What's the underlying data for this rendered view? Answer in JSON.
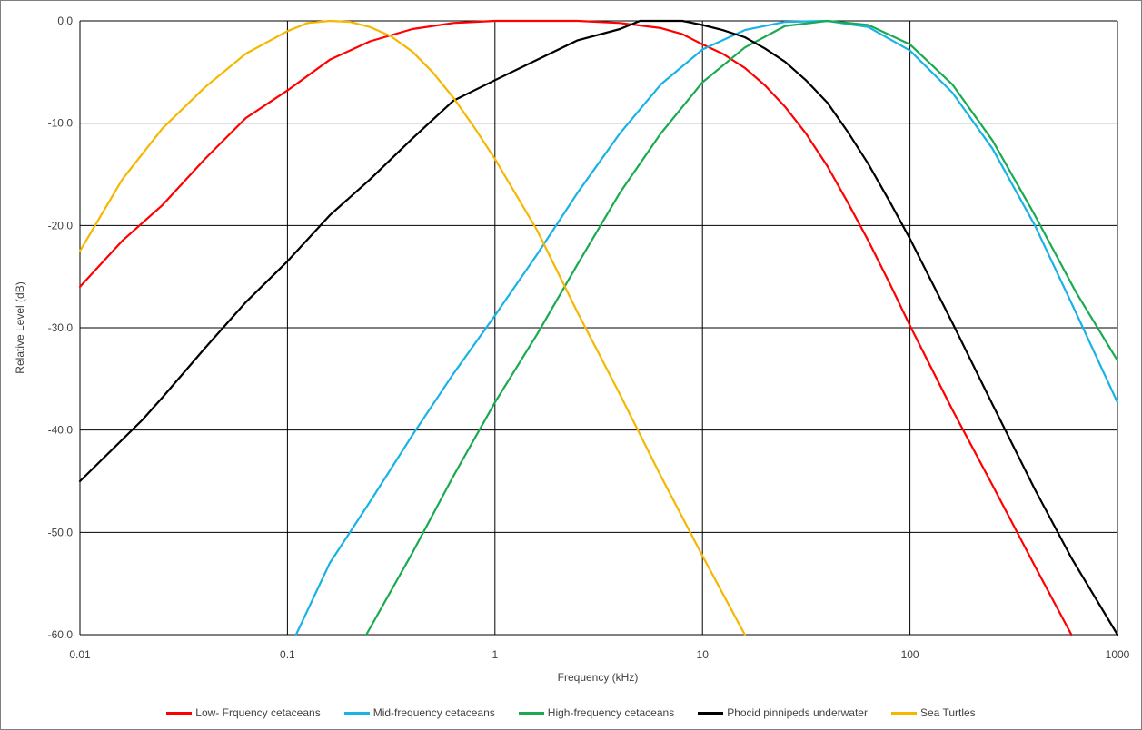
{
  "chart_data": {
    "type": "line",
    "title": "",
    "xlabel": "Frequency (kHz)",
    "ylabel": "Relative Level (dB)",
    "x_scale": "log",
    "xlim": [
      0.01,
      1000
    ],
    "ylim": [
      -60,
      0
    ],
    "x_ticks": [
      0.01,
      0.1,
      1,
      10,
      100,
      1000
    ],
    "x_tick_labels": [
      "0.01",
      "0.1",
      "1",
      "10",
      "100",
      "1000"
    ],
    "y_ticks": [
      0,
      -10,
      -20,
      -30,
      -40,
      -50,
      -60
    ],
    "y_tick_labels": [
      "0.0",
      "-10.0",
      "-20.0",
      "-30.0",
      "-40.0",
      "-50.0",
      "-60.0"
    ],
    "grid": true,
    "legend_position": "bottom",
    "series": [
      {
        "name": "Low- Frquency cetaceans",
        "color": "#ff0000",
        "x": [
          0.01,
          0.016,
          0.025,
          0.04,
          0.063,
          0.1,
          0.16,
          0.25,
          0.4,
          0.63,
          1,
          1.6,
          2.5,
          4,
          6.3,
          8,
          10,
          12.5,
          16,
          20,
          25,
          31.5,
          40,
          50,
          63,
          80,
          100,
          160,
          250,
          400,
          600
        ],
        "y": [
          -26,
          -21.5,
          -18,
          -13.5,
          -9.5,
          -6.8,
          -3.8,
          -2.0,
          -0.8,
          -0.2,
          0,
          0,
          0,
          -0.2,
          -0.7,
          -1.3,
          -2.3,
          -3.2,
          -4.6,
          -6.3,
          -8.4,
          -11.0,
          -14.2,
          -17.7,
          -21.5,
          -25.7,
          -29.8,
          -38,
          -45.4,
          -53.3,
          -60
        ]
      },
      {
        "name": "Mid-frequency cetaceans",
        "color": "#19b2e6",
        "x": [
          0.11,
          0.16,
          0.25,
          0.4,
          0.63,
          1,
          1.6,
          2.5,
          4,
          6.3,
          10,
          16,
          25,
          40,
          63,
          100,
          160,
          250,
          400,
          630,
          1000
        ],
        "y": [
          -60,
          -53,
          -47,
          -40.5,
          -34.5,
          -28.8,
          -22.8,
          -16.8,
          -11.0,
          -6.2,
          -2.8,
          -0.9,
          -0.1,
          0,
          -0.6,
          -2.9,
          -7.0,
          -12.5,
          -20.0,
          -28.5,
          -37.3
        ]
      },
      {
        "name": "High-frequency cetaceans",
        "color": "#1aaa50",
        "x": [
          0.24,
          0.4,
          0.63,
          1,
          1.6,
          2.5,
          4,
          6.3,
          10,
          16,
          25,
          40,
          63,
          100,
          160,
          250,
          400,
          630,
          1000
        ],
        "y": [
          -60,
          -52,
          -44.5,
          -37.3,
          -30.6,
          -23.8,
          -16.8,
          -11.0,
          -6.0,
          -2.6,
          -0.5,
          0,
          -0.4,
          -2.3,
          -6.2,
          -11.7,
          -19.0,
          -26.5,
          -33.2
        ]
      },
      {
        "name": "Phocid pinnipeds underwater",
        "color": "#000000",
        "x": [
          0.01,
          0.02,
          0.025,
          0.04,
          0.063,
          0.1,
          0.16,
          0.25,
          0.4,
          0.63,
          1,
          1.6,
          2.5,
          4,
          5,
          8,
          10,
          12.5,
          16,
          20,
          25,
          31.5,
          40,
          50,
          63,
          80,
          100,
          160,
          250,
          400,
          600,
          1000
        ],
        "y": [
          -45,
          -39,
          -36.8,
          -32,
          -27.5,
          -23.5,
          -19,
          -15.5,
          -11.5,
          -7.8,
          -5.8,
          -3.8,
          -1.9,
          -0.8,
          0,
          0,
          -0.4,
          -0.9,
          -1.6,
          -2.7,
          -4.0,
          -5.8,
          -8.0,
          -10.8,
          -14.0,
          -17.7,
          -21.3,
          -29.5,
          -37.5,
          -45.8,
          -52.5,
          -60
        ]
      },
      {
        "name": "Sea Turtles",
        "color": "#f5b700",
        "x": [
          0.01,
          0.016,
          0.025,
          0.04,
          0.063,
          0.1,
          0.125,
          0.16,
          0.2,
          0.25,
          0.315,
          0.4,
          0.5,
          0.63,
          0.8,
          1,
          1.6,
          2.5,
          4,
          6.3,
          10,
          16
        ],
        "y": [
          -22.5,
          -15.5,
          -10.5,
          -6.5,
          -3.2,
          -1.0,
          -0.2,
          0,
          -0.1,
          -0.6,
          -1.5,
          -3.0,
          -5.0,
          -7.5,
          -10.5,
          -13.5,
          -20.5,
          -28.5,
          -36.5,
          -44.5,
          -52.3,
          -60
        ]
      }
    ]
  }
}
